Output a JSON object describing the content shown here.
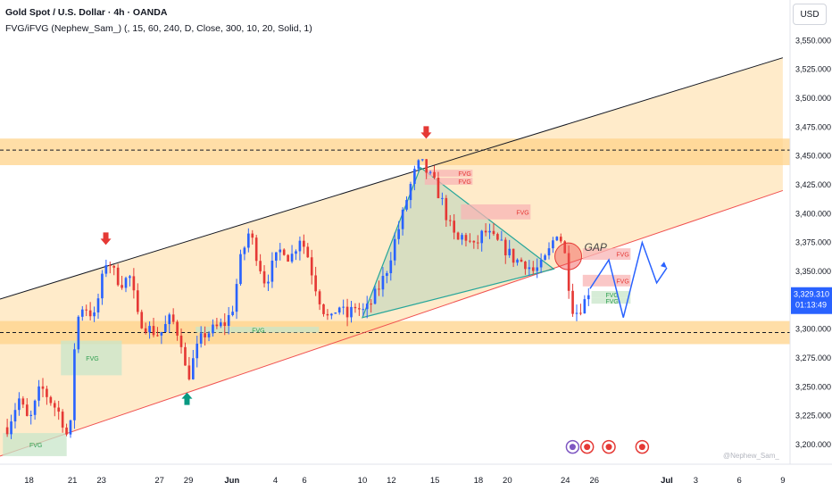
{
  "header": {
    "title": "Gold Spot / U.S. Dollar · 4h · OANDA",
    "indicator": "FVG/iFVG (Nephew_Sam_) (, 15, 60, 240, D, Close, 300, 10, 20, Solid, 1)"
  },
  "currency_button": "USD",
  "watermark": "@Nephew_Sam_",
  "price_badge": {
    "price": "3,329.310",
    "countdown": "01:13:49"
  },
  "annotations": {
    "gap_label": "GAP",
    "fvg_label": "FVG"
  },
  "colors": {
    "up": "#2962ff",
    "down": "#e53935",
    "zone": "#ffd38a",
    "channel_upper": "#131722",
    "channel_lower": "#f05050",
    "triangle": "#26a69a",
    "arrow_down": "#e53935",
    "arrow_up": "#089981",
    "projection": "#2962ff",
    "price_badge": "#2962ff"
  },
  "chart_data": {
    "type": "candlestick",
    "symbol": "Gold Spot / U.S. Dollar",
    "timeframe": "4h",
    "broker": "OANDA",
    "y_axis": {
      "ticks": [
        "3,550.000",
        "3,525.000",
        "3,500.000",
        "3,475.000",
        "3,450.000",
        "3,425.000",
        "3,400.000",
        "3,375.000",
        "3,350.000",
        "3,325.000",
        "3,300.000",
        "3,275.000",
        "3,250.000",
        "3,225.000",
        "3,200.000"
      ],
      "range": [
        3183,
        3585
      ],
      "position": "right"
    },
    "x_axis": {
      "ticks": [
        "18",
        "21",
        "23",
        "27",
        "29",
        "Jun",
        "4",
        "6",
        "10",
        "12",
        "15",
        "18",
        "20",
        "24",
        "26",
        "Jul",
        "3",
        "6",
        "9"
      ],
      "tick_values": [
        18,
        21,
        23,
        27,
        29,
        32,
        35,
        37,
        41,
        43,
        46,
        49,
        51,
        55,
        57,
        62,
        64,
        67,
        70
      ],
      "note": "x values are days counted from May 1 (Jun 1 = 32, Jul 1 = 62)"
    },
    "current_price": 3329.31,
    "candles_count": 148,
    "candle_anchors": [
      [
        16.5,
        3215
      ],
      [
        17.3,
        3240
      ],
      [
        18.0,
        3218
      ],
      [
        18.8,
        3250
      ],
      [
        19.5,
        3238
      ],
      [
        20.2,
        3225
      ],
      [
        20.8,
        3200
      ],
      [
        21.2,
        3300
      ],
      [
        21.6,
        3320
      ],
      [
        22.0,
        3318
      ],
      [
        22.5,
        3310
      ],
      [
        23.0,
        3340
      ],
      [
        23.4,
        3363
      ],
      [
        23.8,
        3350
      ],
      [
        24.3,
        3340
      ],
      [
        25.0,
        3345
      ],
      [
        25.5,
        3310
      ],
      [
        26.3,
        3300
      ],
      [
        27.0,
        3295
      ],
      [
        27.8,
        3310
      ],
      [
        28.5,
        3290
      ],
      [
        28.9,
        3255
      ],
      [
        29.5,
        3280
      ],
      [
        30.0,
        3295
      ],
      [
        30.8,
        3300
      ],
      [
        31.5,
        3305
      ],
      [
        32.0,
        3315
      ],
      [
        32.6,
        3360
      ],
      [
        33.2,
        3385
      ],
      [
        33.8,
        3360
      ],
      [
        34.3,
        3340
      ],
      [
        34.8,
        3355
      ],
      [
        35.5,
        3372
      ],
      [
        36.0,
        3360
      ],
      [
        36.7,
        3380
      ],
      [
        37.2,
        3365
      ],
      [
        37.7,
        3340
      ],
      [
        38.2,
        3320
      ],
      [
        38.8,
        3305
      ],
      [
        39.3,
        3322
      ],
      [
        39.9,
        3310
      ],
      [
        40.5,
        3320
      ],
      [
        41.0,
        3315
      ],
      [
        41.4,
        3318
      ],
      [
        41.9,
        3330
      ],
      [
        42.6,
        3348
      ],
      [
        43.2,
        3375
      ],
      [
        43.7,
        3395
      ],
      [
        44.2,
        3420
      ],
      [
        44.6,
        3435
      ],
      [
        45.0,
        3445
      ],
      [
        45.5,
        3435
      ],
      [
        46.0,
        3425
      ],
      [
        46.5,
        3410
      ],
      [
        47.0,
        3390
      ],
      [
        47.5,
        3375
      ],
      [
        48.0,
        3382
      ],
      [
        48.7,
        3370
      ],
      [
        49.4,
        3385
      ],
      [
        50.0,
        3378
      ],
      [
        50.8,
        3370
      ],
      [
        51.5,
        3360
      ],
      [
        52.2,
        3358
      ],
      [
        52.8,
        3350
      ],
      [
        53.4,
        3355
      ],
      [
        53.9,
        3368
      ],
      [
        54.4,
        3385
      ],
      [
        54.8,
        3375
      ],
      [
        55.1,
        3355
      ],
      [
        55.4,
        3320
      ],
      [
        55.8,
        3315
      ],
      [
        56.2,
        3322
      ],
      [
        56.6,
        3329
      ]
    ],
    "zones": [
      {
        "type": "supply",
        "from": 3442,
        "to": 3465,
        "dashed_level": 3455
      },
      {
        "type": "demand",
        "from": 3287,
        "to": 3307,
        "dashed_level": 3297
      }
    ],
    "channel": {
      "upper": [
        [
          16.0,
          3326
        ],
        [
          70.0,
          3535
        ]
      ],
      "lower": [
        [
          16.0,
          3190
        ],
        [
          70.0,
          3420
        ]
      ]
    },
    "triangle": [
      [
        41.0,
        3310
      ],
      [
        45.0,
        3440
      ],
      [
        54.2,
        3352
      ]
    ],
    "fvg_boxes": [
      {
        "label": "FVG",
        "x": [
          45.3,
          48.6
        ],
        "y": [
          3432,
          3438
        ],
        "color": "red"
      },
      {
        "label": "FVG",
        "x": [
          45.3,
          48.6
        ],
        "y": [
          3425,
          3431
        ],
        "color": "red"
      },
      {
        "label": "FVG",
        "x": [
          47.8,
          52.6
        ],
        "y": [
          3395,
          3408
        ],
        "color": "red"
      },
      {
        "label": "FVG",
        "x": [
          56.2,
          59.5
        ],
        "y": [
          3360,
          3370
        ],
        "color": "red"
      },
      {
        "label": "FVG",
        "x": [
          56.2,
          59.5
        ],
        "y": [
          3337,
          3347
        ],
        "color": "red"
      },
      {
        "label": "FVG",
        "x": [
          20.2,
          24.4
        ],
        "y": [
          3260,
          3290
        ],
        "color": "green"
      },
      {
        "label": "FVG",
        "x": [
          16.2,
          20.6
        ],
        "y": [
          3190,
          3210
        ],
        "color": "green"
      },
      {
        "label": "FVG",
        "x": [
          29.5,
          38.0
        ],
        "y": [
          3297,
          3302
        ],
        "color": "green"
      },
      {
        "label": "FVG",
        "x": [
          56.8,
          59.5
        ],
        "y": [
          3327,
          3333
        ],
        "color": "green"
      },
      {
        "label": "FVG",
        "x": [
          56.8,
          59.5
        ],
        "y": [
          3322,
          3327
        ],
        "color": "green"
      }
    ],
    "gap_circle": {
      "x": 55.2,
      "y": 3363
    },
    "arrows": [
      {
        "dir": "down",
        "x": 23.3,
        "y": 3376
      },
      {
        "dir": "down",
        "x": 45.4,
        "y": 3468
      },
      {
        "dir": "up",
        "x": 28.9,
        "y": 3242
      }
    ],
    "projection_path": [
      [
        56.7,
        3335
      ],
      [
        58.0,
        3360
      ],
      [
        59.0,
        3310
      ],
      [
        60.3,
        3375
      ],
      [
        61.3,
        3340
      ],
      [
        62.0,
        3353
      ]
    ],
    "event_icons": [
      [
        55.5,
        3198
      ],
      [
        56.5,
        3198
      ],
      [
        58.0,
        3198
      ],
      [
        60.3,
        3198
      ]
    ]
  }
}
